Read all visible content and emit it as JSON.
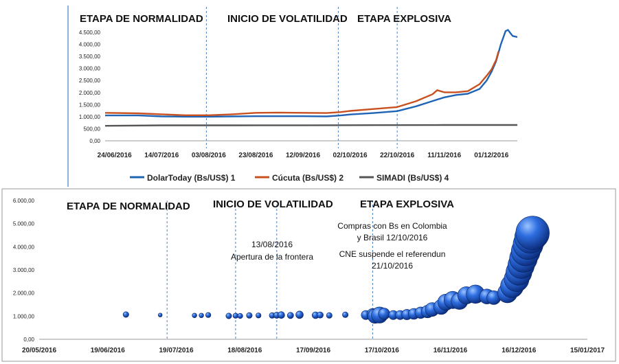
{
  "chart_data": [
    {
      "type": "line",
      "phases": [
        "ETAPA DE NORMALIDAD",
        "INICIO DE VOLATILIDAD",
        "ETAPA EXPLOSIVA"
      ],
      "yticks": [
        "0,00",
        "500,00",
        "1.000,00",
        "1.500,00",
        "2.000,00",
        "2.500,00",
        "3.000,00",
        "3.500,00",
        "4.000,00",
        "4.500,00"
      ],
      "ylim": [
        0,
        4700
      ],
      "xticks": [
        "24/06/2016",
        "14/07/2016",
        "03/08/2016",
        "23/08/2016",
        "12/09/2016",
        "02/10/2016",
        "22/10/2016",
        "11/11/2016",
        "01/12/2016"
      ],
      "x_range_days": [
        -4,
        171
      ],
      "phase_dividers_days": [
        39,
        95,
        120
      ],
      "series": [
        {
          "name": "DolarToday (Bs/US$) 1",
          "color": "#1f63b5",
          "x": [
            -4,
            10,
            20,
            30,
            40,
            50,
            60,
            70,
            80,
            90,
            96,
            100,
            110,
            120,
            128,
            135,
            140,
            145,
            150,
            155,
            158,
            160,
            162,
            164,
            166,
            167,
            169,
            171
          ],
          "y": [
            1050,
            1050,
            1010,
            1000,
            1000,
            1010,
            1020,
            1020,
            1020,
            1010,
            1050,
            1090,
            1150,
            1230,
            1430,
            1650,
            1800,
            1900,
            1950,
            2150,
            2500,
            2850,
            3300,
            4000,
            4550,
            4600,
            4350,
            4300
          ]
        },
        {
          "name": "Cúcuta (Bs/US$) 2",
          "color": "#c8501e",
          "x": [
            -4,
            10,
            20,
            30,
            40,
            50,
            60,
            70,
            80,
            90,
            96,
            100,
            110,
            120,
            128,
            135,
            137,
            140,
            145,
            150,
            155,
            158,
            160,
            162,
            163
          ],
          "y": [
            1160,
            1140,
            1100,
            1060,
            1060,
            1100,
            1160,
            1170,
            1160,
            1150,
            1190,
            1240,
            1320,
            1400,
            1640,
            1930,
            2100,
            2010,
            2010,
            2060,
            2350,
            2700,
            2950,
            3350,
            3700
          ]
        },
        {
          "name": "SIMADI (Bs/US$) 4",
          "color": "#555555",
          "x": [
            -4,
            20,
            50,
            80,
            110,
            140,
            171
          ],
          "y": [
            620,
            640,
            640,
            645,
            650,
            655,
            655
          ]
        }
      ]
    },
    {
      "type": "scatter",
      "phases": [
        "ETAPA DE NORMALIDAD",
        "INICIO DE VOLATILIDAD",
        "ETAPA EXPLOSIVA"
      ],
      "yticks": [
        "0,00",
        "1.000,00",
        "2.000,00",
        "3.000,00",
        "4.000,00",
        "5.000,00",
        "6.000,00"
      ],
      "ylim": [
        0,
        6000
      ],
      "xticks": [
        "20/05/2016",
        "19/06/2016",
        "19/07/2016",
        "18/08/2016",
        "17/09/2016",
        "17/10/2016",
        "16/11/2016",
        "16/12/2016",
        "15/01/2017"
      ],
      "x_range_days": [
        0,
        240
      ],
      "phase_dividers_days": [
        56,
        104,
        146
      ],
      "annotation_marker_days": [
        86
      ],
      "annotations": [
        "13/08/2016",
        "Apertura de la frontera",
        "Compras con Bs en Colombia",
        "y Brasil 12/10/2016",
        "CNE suspende el referendun",
        "21/10/2016"
      ],
      "points": [
        {
          "x": 38,
          "y": 1070,
          "s": 1.0
        },
        {
          "x": 53,
          "y": 1050,
          "s": 0.7
        },
        {
          "x": 68,
          "y": 1030,
          "s": 0.8
        },
        {
          "x": 71,
          "y": 1030,
          "s": 0.8
        },
        {
          "x": 74,
          "y": 1050,
          "s": 0.9
        },
        {
          "x": 83,
          "y": 1010,
          "s": 1.0
        },
        {
          "x": 86,
          "y": 1020,
          "s": 0.9
        },
        {
          "x": 88,
          "y": 1010,
          "s": 0.9
        },
        {
          "x": 92,
          "y": 1030,
          "s": 1.0
        },
        {
          "x": 96,
          "y": 1030,
          "s": 0.9
        },
        {
          "x": 102,
          "y": 1030,
          "s": 1.0
        },
        {
          "x": 104,
          "y": 1040,
          "s": 1.1
        },
        {
          "x": 106,
          "y": 1050,
          "s": 1.2
        },
        {
          "x": 110,
          "y": 1030,
          "s": 1.1
        },
        {
          "x": 114,
          "y": 1060,
          "s": 1.3
        },
        {
          "x": 121,
          "y": 1040,
          "s": 1.2
        },
        {
          "x": 123,
          "y": 1050,
          "s": 1.1
        },
        {
          "x": 127,
          "y": 1030,
          "s": 1.0
        },
        {
          "x": 134,
          "y": 1060,
          "s": 1.0
        },
        {
          "x": 143,
          "y": 1050,
          "s": 1.6
        },
        {
          "x": 146,
          "y": 1080,
          "s": 2.0
        },
        {
          "x": 147,
          "y": 1000,
          "s": 2.5
        },
        {
          "x": 149,
          "y": 1050,
          "s": 2.8
        },
        {
          "x": 151,
          "y": 1100,
          "s": 2.0
        },
        {
          "x": 155,
          "y": 1050,
          "s": 1.6
        },
        {
          "x": 158,
          "y": 1050,
          "s": 1.6
        },
        {
          "x": 161,
          "y": 1070,
          "s": 1.8
        },
        {
          "x": 164,
          "y": 1100,
          "s": 1.9
        },
        {
          "x": 167,
          "y": 1150,
          "s": 2.0
        },
        {
          "x": 170,
          "y": 1200,
          "s": 2.2
        },
        {
          "x": 172,
          "y": 1290,
          "s": 2.4
        },
        {
          "x": 176,
          "y": 1400,
          "s": 2.6
        },
        {
          "x": 178,
          "y": 1600,
          "s": 2.8
        },
        {
          "x": 181,
          "y": 1700,
          "s": 3.0
        },
        {
          "x": 184,
          "y": 1650,
          "s": 2.9
        },
        {
          "x": 187,
          "y": 1900,
          "s": 3.0
        },
        {
          "x": 191,
          "y": 1950,
          "s": 3.2
        },
        {
          "x": 196,
          "y": 1850,
          "s": 2.6
        },
        {
          "x": 199,
          "y": 1800,
          "s": 2.4
        },
        {
          "x": 205,
          "y": 2000,
          "s": 3.4
        },
        {
          "x": 207,
          "y": 2300,
          "s": 4.0
        },
        {
          "x": 209,
          "y": 2600,
          "s": 4.3
        },
        {
          "x": 210,
          "y": 2900,
          "s": 4.5
        },
        {
          "x": 211,
          "y": 3200,
          "s": 4.6
        },
        {
          "x": 212,
          "y": 3500,
          "s": 4.8
        },
        {
          "x": 213,
          "y": 3800,
          "s": 5.0
        },
        {
          "x": 214,
          "y": 4100,
          "s": 5.2
        },
        {
          "x": 215,
          "y": 4400,
          "s": 5.4
        },
        {
          "x": 216,
          "y": 4600,
          "s": 5.8
        }
      ]
    }
  ]
}
